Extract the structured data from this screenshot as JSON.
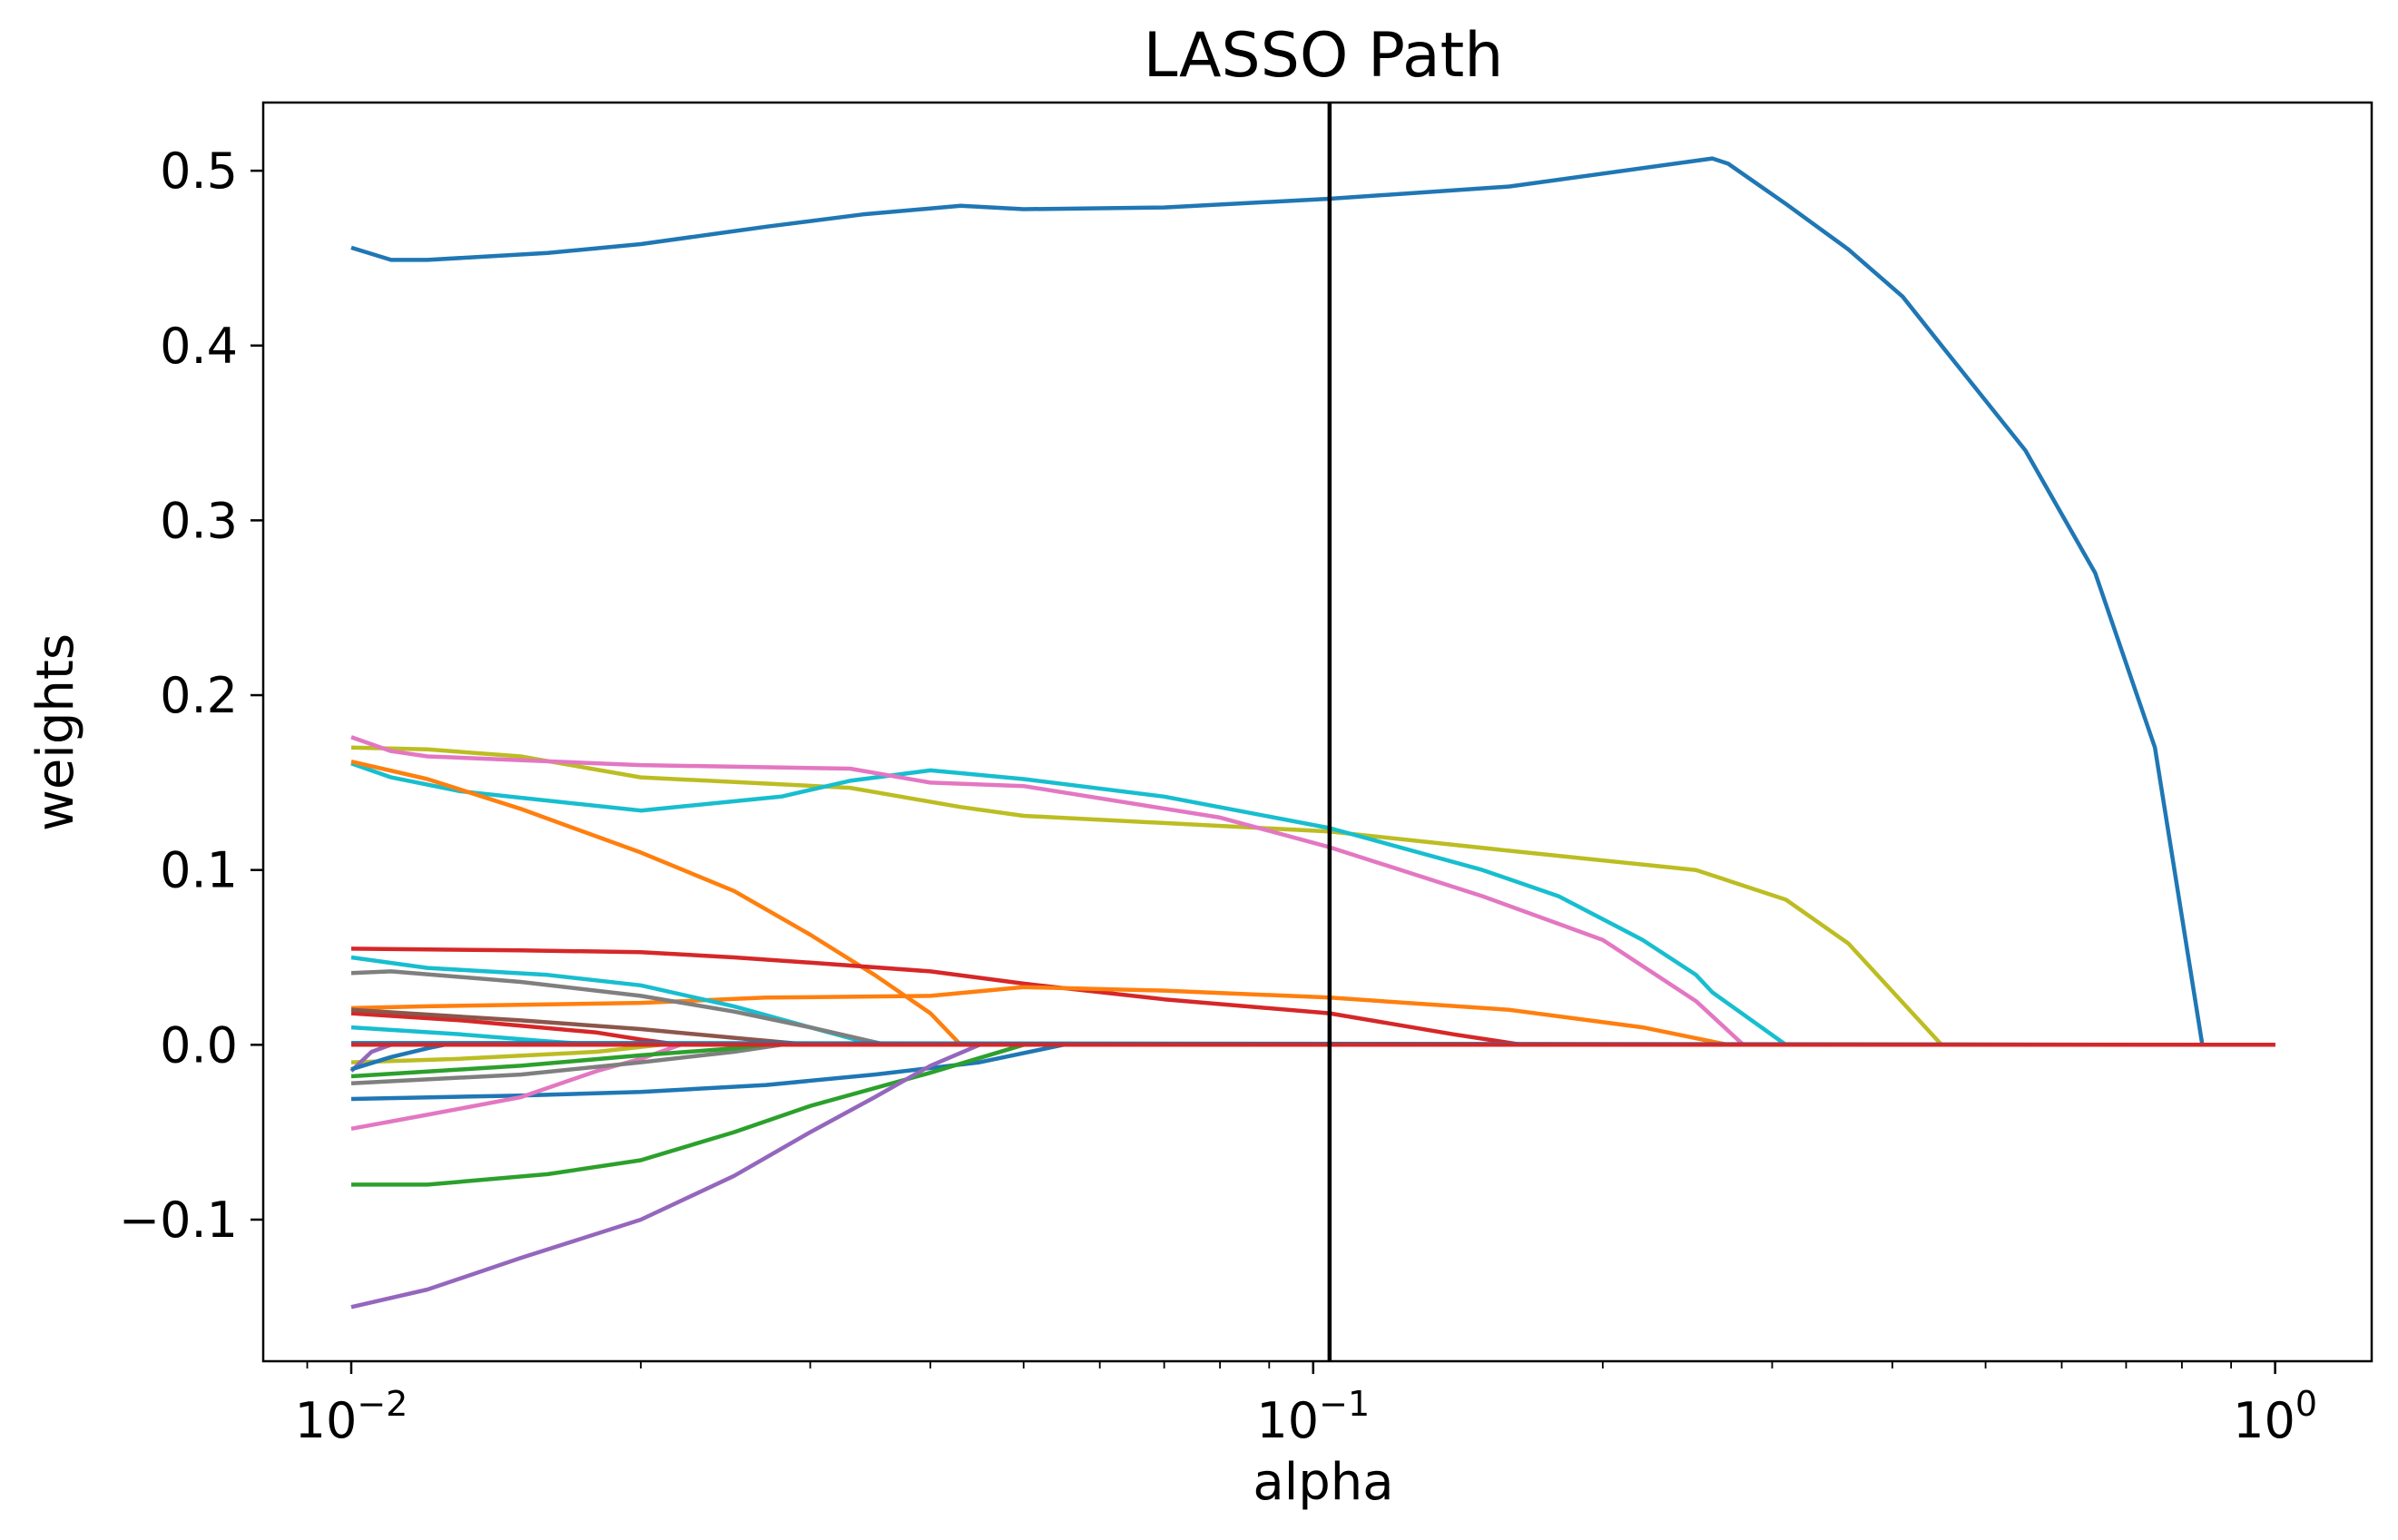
{
  "chart_data": {
    "type": "line",
    "title": "LASSO Path",
    "xlabel": "alpha",
    "ylabel": "weights",
    "xscale": "log",
    "xlim": [
      0.0081,
      1.26
    ],
    "ylim": [
      -0.181,
      0.539
    ],
    "grid": false,
    "legend": "none",
    "vline": {
      "x": 0.104,
      "color": "#000000"
    },
    "x_ticks": [
      {
        "value": 0.01,
        "base": "10",
        "exp": "−2"
      },
      {
        "value": 0.1,
        "base": "10",
        "exp": "−1"
      },
      {
        "value": 1,
        "base": "10",
        "exp": "0"
      }
    ],
    "y_ticks": [
      {
        "value": -0.1,
        "label": "−0.1"
      },
      {
        "value": 0.0,
        "label": "0.0"
      },
      {
        "value": 0.1,
        "label": "0.1"
      },
      {
        "value": 0.2,
        "label": "0.2"
      },
      {
        "value": 0.3,
        "label": "0.3"
      },
      {
        "value": 0.4,
        "label": "0.4"
      },
      {
        "value": 0.5,
        "label": "0.5"
      }
    ],
    "series": [
      {
        "color": "#1f77b4",
        "points": [
          [
            0.01,
            0.456
          ],
          [
            0.011,
            0.449
          ],
          [
            0.012,
            0.449
          ],
          [
            0.016,
            0.453
          ],
          [
            0.02,
            0.458
          ],
          [
            0.027,
            0.468
          ],
          [
            0.034,
            0.475
          ],
          [
            0.043,
            0.48
          ],
          [
            0.05,
            0.478
          ],
          [
            0.07,
            0.479
          ],
          [
            0.104,
            0.484
          ],
          [
            0.16,
            0.491
          ],
          [
            0.26,
            0.507
          ],
          [
            0.27,
            0.504
          ],
          [
            0.31,
            0.481
          ],
          [
            0.36,
            0.455
          ],
          [
            0.41,
            0.428
          ],
          [
            0.45,
            0.4
          ],
          [
            0.55,
            0.34
          ],
          [
            0.65,
            0.27
          ],
          [
            0.75,
            0.17
          ],
          [
            0.84,
            0.0
          ],
          [
            1.0,
            0.0
          ]
        ]
      },
      {
        "color": "#bcbd22",
        "points": [
          [
            0.01,
            0.17
          ],
          [
            0.012,
            0.169
          ],
          [
            0.015,
            0.165
          ],
          [
            0.02,
            0.153
          ],
          [
            0.033,
            0.147
          ],
          [
            0.043,
            0.136
          ],
          [
            0.05,
            0.131
          ],
          [
            0.104,
            0.122
          ],
          [
            0.16,
            0.111
          ],
          [
            0.25,
            0.1
          ],
          [
            0.31,
            0.083
          ],
          [
            0.36,
            0.058
          ],
          [
            0.45,
            0.0
          ],
          [
            1.0,
            0.0
          ]
        ]
      },
      {
        "color": "#17becf",
        "points": [
          [
            0.01,
            0.161
          ],
          [
            0.011,
            0.153
          ],
          [
            0.013,
            0.145
          ],
          [
            0.02,
            0.134
          ],
          [
            0.028,
            0.142
          ],
          [
            0.033,
            0.151
          ],
          [
            0.04,
            0.157
          ],
          [
            0.05,
            0.152
          ],
          [
            0.07,
            0.142
          ],
          [
            0.104,
            0.124
          ],
          [
            0.15,
            0.1
          ],
          [
            0.18,
            0.085
          ],
          [
            0.22,
            0.06
          ],
          [
            0.25,
            0.04
          ],
          [
            0.26,
            0.03
          ],
          [
            0.31,
            0.0
          ],
          [
            1.0,
            0.0
          ]
        ]
      },
      {
        "color": "#e377c2",
        "points": [
          [
            0.01,
            0.176
          ],
          [
            0.011,
            0.168
          ],
          [
            0.012,
            0.165
          ],
          [
            0.02,
            0.16
          ],
          [
            0.033,
            0.158
          ],
          [
            0.04,
            0.15
          ],
          [
            0.05,
            0.148
          ],
          [
            0.08,
            0.13
          ],
          [
            0.104,
            0.113
          ],
          [
            0.15,
            0.085
          ],
          [
            0.2,
            0.06
          ],
          [
            0.25,
            0.025
          ],
          [
            0.28,
            0.0
          ],
          [
            1.0,
            0.0
          ]
        ]
      },
      {
        "color": "#ff7f0e",
        "points": [
          [
            0.01,
            0.162
          ],
          [
            0.012,
            0.152
          ],
          [
            0.015,
            0.135
          ],
          [
            0.02,
            0.11
          ],
          [
            0.025,
            0.088
          ],
          [
            0.03,
            0.063
          ],
          [
            0.035,
            0.04
          ],
          [
            0.04,
            0.018
          ],
          [
            0.043,
            0.0
          ],
          [
            1.0,
            0.0
          ]
        ]
      },
      {
        "color": "#d62728",
        "points": [
          [
            0.01,
            0.055
          ],
          [
            0.015,
            0.054
          ],
          [
            0.02,
            0.053
          ],
          [
            0.025,
            0.05
          ],
          [
            0.03,
            0.047
          ],
          [
            0.04,
            0.042
          ],
          [
            0.05,
            0.035
          ],
          [
            0.07,
            0.026
          ],
          [
            0.104,
            0.018
          ],
          [
            0.14,
            0.006
          ],
          [
            0.165,
            0.0
          ],
          [
            1.0,
            0.0
          ]
        ]
      },
      {
        "color": "#ff7f0e",
        "points": [
          [
            0.01,
            0.021
          ],
          [
            0.012,
            0.022
          ],
          [
            0.02,
            0.024
          ],
          [
            0.027,
            0.027
          ],
          [
            0.04,
            0.028
          ],
          [
            0.05,
            0.033
          ],
          [
            0.07,
            0.031
          ],
          [
            0.104,
            0.027
          ],
          [
            0.16,
            0.02
          ],
          [
            0.22,
            0.01
          ],
          [
            0.27,
            0.0
          ],
          [
            1.0,
            0.0
          ]
        ]
      },
      {
        "color": "#17becf",
        "points": [
          [
            0.01,
            0.05
          ],
          [
            0.012,
            0.044
          ],
          [
            0.016,
            0.04
          ],
          [
            0.02,
            0.034
          ],
          [
            0.025,
            0.022
          ],
          [
            0.03,
            0.01
          ],
          [
            0.035,
            0.0
          ],
          [
            1.0,
            0.0
          ]
        ]
      },
      {
        "color": "#7f7f7f",
        "points": [
          [
            0.01,
            0.041
          ],
          [
            0.011,
            0.042
          ],
          [
            0.015,
            0.036
          ],
          [
            0.02,
            0.028
          ],
          [
            0.025,
            0.019
          ],
          [
            0.03,
            0.01
          ],
          [
            0.036,
            0.0
          ],
          [
            1.0,
            0.0
          ]
        ]
      },
      {
        "color": "#d62728",
        "points": [
          [
            0.01,
            0.018
          ],
          [
            0.013,
            0.014
          ],
          [
            0.018,
            0.007
          ],
          [
            0.02,
            0.003
          ],
          [
            0.022,
            0.0
          ],
          [
            1.0,
            0.0
          ]
        ]
      },
      {
        "color": "#8c564b",
        "points": [
          [
            0.01,
            0.02
          ],
          [
            0.015,
            0.014
          ],
          [
            0.02,
            0.009
          ],
          [
            0.025,
            0.004
          ],
          [
            0.03,
            0.0
          ],
          [
            1.0,
            0.0
          ]
        ]
      },
      {
        "color": "#1f77b4",
        "points": [
          [
            0.01,
            -0.031
          ],
          [
            0.015,
            -0.029
          ],
          [
            0.02,
            -0.027
          ],
          [
            0.027,
            -0.023
          ],
          [
            0.035,
            -0.017
          ],
          [
            0.045,
            -0.01
          ],
          [
            0.055,
            0.0
          ],
          [
            1.0,
            0.0
          ]
        ]
      },
      {
        "color": "#2ca02c",
        "points": [
          [
            0.01,
            -0.08
          ],
          [
            0.012,
            -0.08
          ],
          [
            0.016,
            -0.074
          ],
          [
            0.02,
            -0.066
          ],
          [
            0.025,
            -0.05
          ],
          [
            0.03,
            -0.035
          ],
          [
            0.04,
            -0.016
          ],
          [
            0.05,
            0.0
          ],
          [
            1.0,
            0.0
          ]
        ]
      },
      {
        "color": "#9467bd",
        "points": [
          [
            0.01,
            -0.15
          ],
          [
            0.012,
            -0.14
          ],
          [
            0.015,
            -0.122
          ],
          [
            0.02,
            -0.1
          ],
          [
            0.025,
            -0.075
          ],
          [
            0.03,
            -0.05
          ],
          [
            0.035,
            -0.03
          ],
          [
            0.04,
            -0.012
          ],
          [
            0.045,
            0.0
          ],
          [
            1.0,
            0.0
          ]
        ]
      },
      {
        "color": "#e377c2",
        "points": [
          [
            0.01,
            -0.048
          ],
          [
            0.012,
            -0.04
          ],
          [
            0.015,
            -0.03
          ],
          [
            0.018,
            -0.015
          ],
          [
            0.02,
            -0.008
          ],
          [
            0.022,
            0.0
          ],
          [
            1.0,
            0.0
          ]
        ]
      },
      {
        "color": "#7f7f7f",
        "points": [
          [
            0.01,
            -0.022
          ],
          [
            0.015,
            -0.017
          ],
          [
            0.02,
            -0.01
          ],
          [
            0.025,
            -0.004
          ],
          [
            0.028,
            0.0
          ],
          [
            1.0,
            0.0
          ]
        ]
      },
      {
        "color": "#bcbd22",
        "points": [
          [
            0.01,
            -0.01
          ],
          [
            0.013,
            -0.008
          ],
          [
            0.018,
            -0.004
          ],
          [
            0.021,
            0.0
          ],
          [
            1.0,
            0.0
          ]
        ]
      },
      {
        "color": "#2ca02c",
        "points": [
          [
            0.01,
            -0.018
          ],
          [
            0.015,
            -0.012
          ],
          [
            0.02,
            -0.006
          ],
          [
            0.025,
            -0.002
          ],
          [
            0.027,
            0.0
          ],
          [
            1.0,
            0.0
          ]
        ]
      },
      {
        "color": "#17becf",
        "points": [
          [
            0.01,
            0.01
          ],
          [
            0.013,
            0.006
          ],
          [
            0.016,
            0.002
          ],
          [
            0.018,
            0.0
          ],
          [
            1.0,
            0.0
          ]
        ]
      },
      {
        "color": "#9467bd",
        "points": [
          [
            0.01,
            -0.015
          ],
          [
            0.0105,
            -0.004
          ],
          [
            0.011,
            0.0
          ],
          [
            1.0,
            0.0
          ]
        ]
      },
      {
        "color": "#1f77b4",
        "points": [
          [
            0.01,
            0.001
          ],
          [
            0.02,
            0.001
          ],
          [
            1.0,
            0.0
          ]
        ]
      },
      {
        "color": "#1f77b4",
        "points": [
          [
            0.01,
            -0.014
          ],
          [
            0.011,
            -0.007
          ],
          [
            0.012,
            -0.002
          ],
          [
            0.0125,
            0.0
          ],
          [
            1.0,
            0.0
          ]
        ]
      },
      {
        "color": "#d62728",
        "points": [
          [
            0.01,
            0.0
          ],
          [
            1.0,
            0.0
          ]
        ]
      }
    ]
  }
}
